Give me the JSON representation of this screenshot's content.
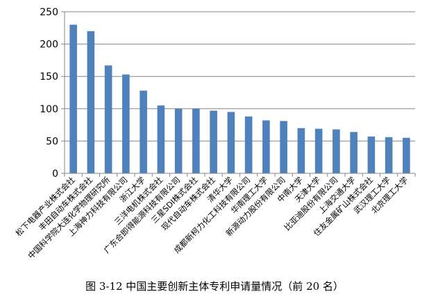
{
  "chart_data": {
    "type": "bar",
    "categories": [
      "松下电器产业株式会社",
      "丰田自动车株式会社",
      "中国科学院大连化学物理研究所",
      "上海神力科技有限公司",
      "浙江大学",
      "三洋电机株式会社",
      "广东合即得能源科技有限公司",
      "三星SDI株式会社",
      "现代自动车株式会社",
      "清华大学",
      "成都新柯力化工科技有限公司",
      "华南理工大学",
      "新源动力股份有限公司",
      "中南大学",
      "天津大学",
      "比亚迪股份有限公司",
      "上海交通大学",
      "住友金属矿山株式会社",
      "武汉理工大学",
      "北京理工大学"
    ],
    "values": [
      230,
      220,
      167,
      153,
      128,
      105,
      100,
      100,
      97,
      95,
      88,
      82,
      81,
      70,
      69,
      68,
      64,
      57,
      56,
      55
    ],
    "title": "",
    "xlabel": "",
    "ylabel": "",
    "ylim": [
      0,
      250
    ],
    "yticks": [
      0,
      50,
      100,
      150,
      200,
      250
    ],
    "grid": true,
    "legend": "none",
    "bar_color": "#4f81bd"
  },
  "caption": "图 3-12  中国主要创新主体专利申请量情况（前 20 名）"
}
